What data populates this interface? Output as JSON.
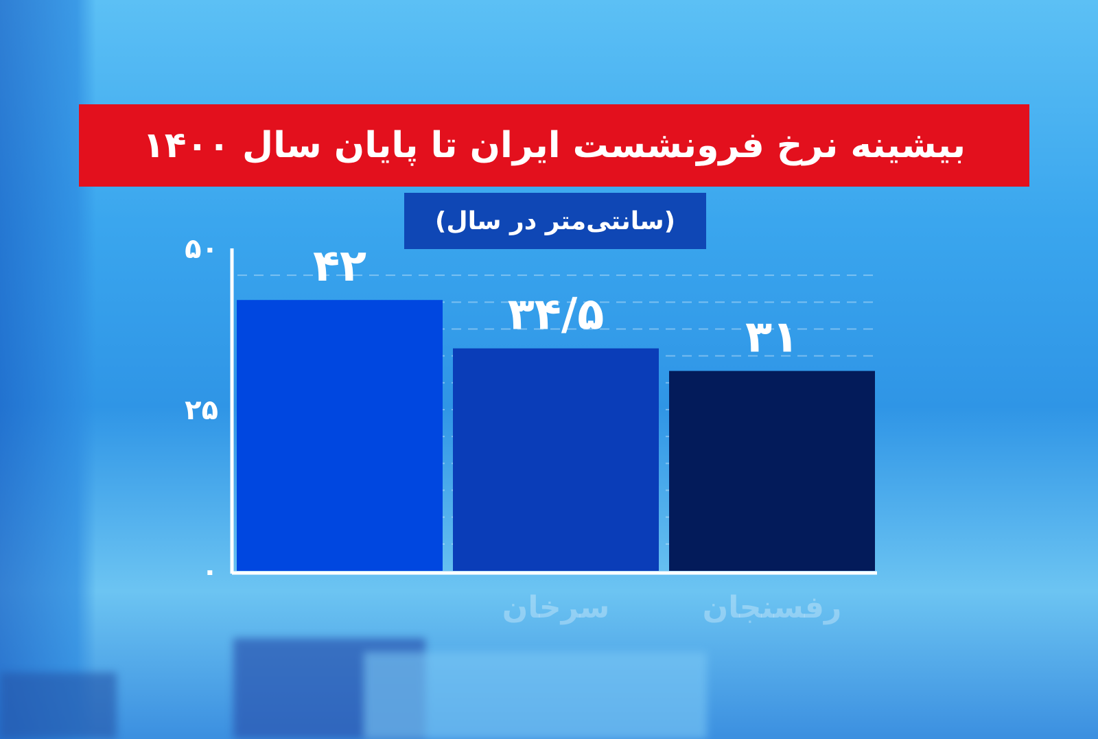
{
  "chart_data": {
    "type": "bar",
    "title": "بیشینه نرخ فرونشست ایران تا پایان سال ۱۴۰۰",
    "subtitle": "(سانتی‌متر در سال)",
    "categories": [
      "",
      "سرخان",
      "رفسنجان"
    ],
    "values": [
      42,
      34.5,
      31
    ],
    "data_labels": [
      "۴۲",
      "۳۴/۵",
      "۳۱"
    ],
    "ylim": [
      0,
      50
    ],
    "yticks": [
      0,
      25,
      50
    ],
    "ytick_labels": [
      "۰",
      "۲۵",
      "۵۰"
    ],
    "grid": "dashed horizontal",
    "colors": [
      "#0047e0",
      "#0a3db8",
      "#031b5a"
    ],
    "title_bg": "#e3101d",
    "subtitle_bg": "#0f47b5"
  }
}
